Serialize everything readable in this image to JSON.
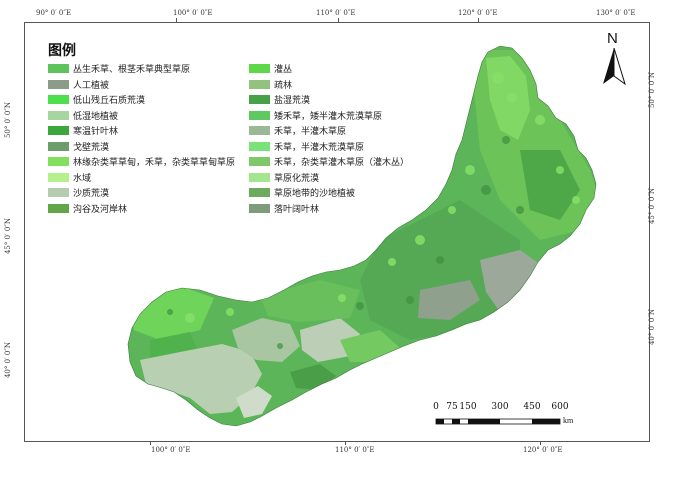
{
  "legend": {
    "title": "图例",
    "left_column": [
      {
        "label": "丛生禾草、根茎禾草典型草原",
        "color": "#5cc45a"
      },
      {
        "label": "人工植被",
        "color": "#8c9c88"
      },
      {
        "label": "低山残丘石质荒漠",
        "color": "#4ee04c"
      },
      {
        "label": "低湿地植被",
        "color": "#a6d6a0"
      },
      {
        "label": "寒温针叶林",
        "color": "#3aa83c"
      },
      {
        "label": "戈壁荒漠",
        "color": "#6c9c6c"
      },
      {
        "label": "林缘杂类草草甸，禾草，杂类草草甸草原",
        "color": "#82e05e"
      },
      {
        "label": "水域",
        "color": "#b4f08c"
      },
      {
        "label": "沙质荒漠",
        "color": "#b6ccb0"
      },
      {
        "label": "沟谷及河岸林",
        "color": "#62a64a"
      }
    ],
    "right_column": [
      {
        "label": "灌丛",
        "color": "#5ed848"
      },
      {
        "label": "疏林",
        "color": "#92c27e"
      },
      {
        "label": "盐湿荒漠",
        "color": "#48a048"
      },
      {
        "label": "矮禾草，矮半灌木荒漠草原",
        "color": "#60c860"
      },
      {
        "label": "禾草，半灌木草原",
        "color": "#9ab896"
      },
      {
        "label": "禾草，半灌木荒漠草原",
        "color": "#7ae27a"
      },
      {
        "label": "禾草，杂类草灌木草原（灌木丛）",
        "color": "#7ec868"
      },
      {
        "label": "草原化荒漠",
        "color": "#a4e690"
      },
      {
        "label": "草原地带的沙地植被",
        "color": "#6eaa5e"
      },
      {
        "label": "落叶阔叶林",
        "color": "#7e9c7c"
      }
    ]
  },
  "axes": {
    "top": [
      "90° 0′ 0″E",
      "100° 0′ 0″E",
      "110° 0′ 0″E",
      "120° 0′ 0″E",
      "130° 0′ 0″E"
    ],
    "bottom": [
      "100° 0′ 0″E",
      "110° 0′ 0″E",
      "120° 0′ 0″E"
    ],
    "left": [
      "50° 0′ 0″N",
      "45° 0′ 0″N",
      "40° 0′ 0″N"
    ],
    "right": [
      "50° 0′ 0″N",
      "45° 0′ 0″N",
      "40° 0′ 0″N"
    ]
  },
  "north_arrow": {
    "label": "N",
    "icon": "north-arrow-icon"
  },
  "scale_bar": {
    "ticks": [
      "0",
      "75",
      "150",
      "300",
      "450",
      "600"
    ],
    "unit": "km"
  },
  "colors": {
    "map_base": "#5fb65a",
    "sand_desert": "#b9cfb3",
    "grey_steppe": "#9aa898",
    "bright_patch": "#86e66a"
  }
}
